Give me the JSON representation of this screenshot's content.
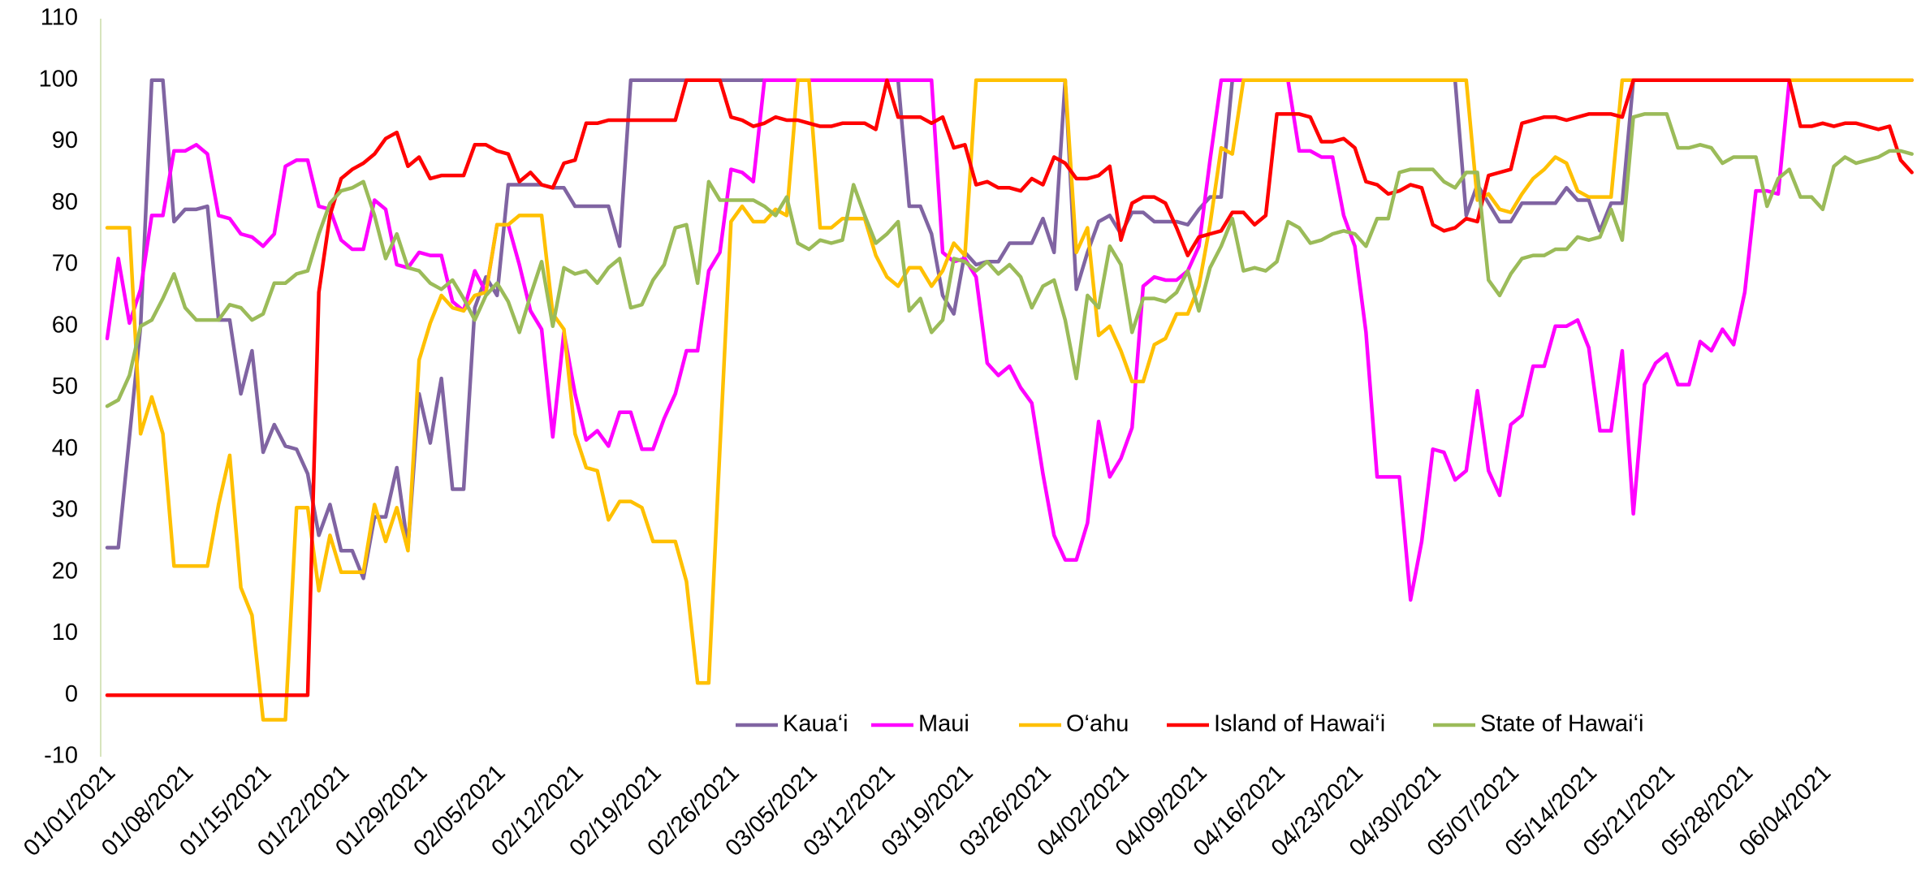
{
  "chart_data": {
    "type": "line",
    "categories": [
      "01/01/2021",
      null,
      null,
      null,
      null,
      null,
      null,
      "01/08/2021",
      null,
      null,
      null,
      null,
      null,
      null,
      "01/15/2021",
      null,
      null,
      null,
      null,
      null,
      null,
      "01/22/2021",
      null,
      null,
      null,
      null,
      null,
      null,
      "01/29/2021",
      null,
      null,
      null,
      null,
      null,
      null,
      "02/05/2021",
      null,
      null,
      null,
      null,
      null,
      null,
      "02/12/2021",
      null,
      null,
      null,
      null,
      null,
      null,
      "02/19/2021",
      null,
      null,
      null,
      null,
      null,
      null,
      "02/26/2021",
      null,
      null,
      null,
      null,
      null,
      null,
      "03/05/2021",
      null,
      null,
      null,
      null,
      null,
      null,
      "03/12/2021",
      null,
      null,
      null,
      null,
      null,
      null,
      "03/19/2021",
      null,
      null,
      null,
      null,
      null,
      null,
      "03/26/2021",
      null,
      null,
      null,
      null,
      null,
      null,
      "04/02/2021",
      null,
      null,
      null,
      null,
      null,
      null,
      "04/09/2021",
      null,
      null,
      null,
      null,
      null,
      null,
      "04/16/2021",
      null,
      null,
      null,
      null,
      null,
      null,
      "04/23/2021",
      null,
      null,
      null,
      null,
      null,
      null,
      "04/30/2021",
      null,
      null,
      null,
      null,
      null,
      null,
      "05/07/2021",
      null,
      null,
      null,
      null,
      null,
      null,
      "05/14/2021",
      null,
      null,
      null,
      null,
      null,
      null,
      "05/21/2021",
      null,
      null,
      null,
      null,
      null,
      null,
      "05/28/2021",
      null,
      null,
      null,
      null,
      null,
      null,
      "06/04/2021",
      null,
      null,
      null,
      null,
      null,
      null,
      null,
      null
    ],
    "series": [
      {
        "name": "Kaua‘i",
        "color": "#8064a2",
        "values": [
          24,
          24,
          42,
          60,
          100,
          100,
          77,
          79,
          79,
          79.5,
          61,
          61,
          49,
          56,
          39.5,
          44,
          40.5,
          40,
          36,
          26,
          31,
          23.5,
          23.5,
          19,
          29,
          29,
          37,
          24,
          49,
          41,
          51.5,
          33.5,
          33.5,
          63,
          68,
          65,
          83,
          83,
          83,
          83,
          82.5,
          82.5,
          79.5,
          79.5,
          79.5,
          79.5,
          73,
          100,
          100,
          100,
          100,
          100,
          100,
          100,
          100,
          100,
          100,
          100,
          100,
          100,
          100,
          100,
          100,
          100,
          100,
          100,
          100,
          100,
          100,
          100,
          100,
          100,
          79.5,
          79.5,
          75,
          65,
          62,
          72,
          70,
          70.5,
          70.5,
          73.5,
          73.5,
          73.5,
          77.5,
          72,
          100,
          66,
          72,
          77,
          78,
          75,
          78.5,
          78.5,
          77,
          77,
          77,
          76.5,
          79,
          81,
          81,
          100,
          100,
          100,
          100,
          100,
          100,
          100,
          100,
          100,
          100,
          100,
          100,
          100,
          100,
          100,
          100,
          100,
          100,
          100,
          100,
          100,
          78,
          83,
          80,
          77,
          77,
          80,
          80,
          80,
          80,
          82.5,
          80.5,
          80.5,
          75.5,
          80,
          80,
          100,
          100,
          100,
          100,
          100,
          100,
          100,
          100,
          100,
          100,
          100,
          100,
          100,
          100,
          100,
          100,
          100,
          100,
          100,
          100,
          100,
          100,
          100,
          100,
          100,
          100
        ]
      },
      {
        "name": "Maui",
        "color": "#ff00ff",
        "values": [
          58,
          71,
          60.5,
          66,
          78,
          78,
          88.5,
          88.5,
          89.5,
          88,
          78,
          77.5,
          75,
          74.5,
          73,
          75,
          86,
          87,
          87,
          79.5,
          79,
          74,
          72.5,
          72.5,
          80.5,
          79,
          70,
          69.5,
          72,
          71.5,
          71.5,
          64,
          62.5,
          69,
          65.5,
          76.5,
          76.5,
          70,
          62.5,
          59.5,
          42,
          59,
          49,
          41.5,
          43,
          40.5,
          46,
          46,
          40,
          40,
          45,
          49,
          56,
          56,
          69,
          72,
          85.5,
          85,
          83.5,
          100,
          100,
          100,
          100,
          100,
          100,
          100,
          100,
          100,
          100,
          100,
          100,
          100,
          100,
          100,
          100,
          72,
          70.5,
          71,
          68,
          54,
          52,
          53.5,
          50,
          47.5,
          36,
          26,
          22,
          22,
          28,
          44.5,
          35.5,
          38.5,
          43.5,
          66.5,
          68,
          67.5,
          67.5,
          69,
          73,
          87,
          100,
          100,
          100,
          100,
          100,
          100,
          100,
          88.5,
          88.5,
          87.5,
          87.5,
          78,
          73,
          59,
          35.5,
          35.5,
          35.5,
          15.5,
          25,
          40,
          39.5,
          35,
          36.5,
          49.5,
          36.5,
          32.5,
          44,
          45.5,
          53.5,
          53.5,
          60,
          60,
          61,
          56.5,
          43,
          43,
          56,
          29.5,
          50.5,
          54,
          55.5,
          50.5,
          50.5,
          57.5,
          56,
          59.5,
          57,
          65.5,
          82,
          82,
          81.5,
          100,
          100,
          100,
          100,
          100,
          100,
          100,
          100,
          100,
          100,
          100,
          100
        ]
      },
      {
        "name": "O‘ahu",
        "color": "#ffc000",
        "values": [
          76,
          76,
          76,
          42.5,
          48.5,
          42.5,
          21,
          21,
          21,
          21,
          31,
          39,
          17.5,
          13,
          -4,
          -4,
          -4,
          30.5,
          30.5,
          17,
          26,
          20,
          20,
          20,
          31,
          25,
          30.5,
          23.5,
          54.5,
          60.5,
          65,
          63,
          62.5,
          65,
          65.5,
          76.5,
          76.5,
          78,
          78,
          78,
          62,
          59.5,
          42.5,
          37,
          36.5,
          28.5,
          31.5,
          31.5,
          30.5,
          25,
          25,
          25,
          18.5,
          2,
          2,
          40,
          77,
          79.5,
          77,
          77,
          79,
          78,
          100,
          100,
          76,
          76,
          77.5,
          77.5,
          77.5,
          71.5,
          68,
          66.5,
          69.5,
          69.5,
          66.5,
          69,
          73.5,
          71.5,
          100,
          100,
          100,
          100,
          100,
          100,
          100,
          100,
          100,
          72,
          76,
          58.5,
          60,
          56,
          51,
          51,
          57,
          58,
          62,
          62,
          66.5,
          76.5,
          89,
          88,
          100,
          100,
          100,
          100,
          100,
          100,
          100,
          100,
          100,
          100,
          100,
          100,
          100,
          100,
          100,
          100,
          100,
          100,
          100,
          100,
          100,
          80.5,
          81.5,
          79,
          78.5,
          81.5,
          84,
          85.5,
          87.5,
          86.5,
          82,
          81,
          81,
          81,
          100,
          100,
          100,
          100,
          100,
          100,
          100,
          100,
          100,
          100,
          100,
          100,
          100,
          100,
          100,
          100,
          100,
          100,
          100,
          100,
          100,
          100,
          100,
          100,
          100,
          100,
          100
        ]
      },
      {
        "name": "Island of Hawai‘i",
        "color": "#ff0000",
        "values": [
          0,
          0,
          0,
          0,
          0,
          0,
          0,
          0,
          0,
          0,
          0,
          0,
          0,
          0,
          0,
          0,
          0,
          0,
          0,
          65.5,
          78,
          84,
          85.5,
          86.5,
          88,
          90.5,
          91.5,
          86,
          87.5,
          84,
          84.5,
          84.5,
          84.5,
          89.5,
          89.5,
          88.5,
          88,
          83.5,
          85,
          83,
          82.5,
          86.5,
          87,
          93,
          93,
          93.5,
          93.5,
          93.5,
          93.5,
          93.5,
          93.5,
          93.5,
          100,
          100,
          100,
          100,
          94,
          93.5,
          92.5,
          93,
          94,
          93.5,
          93.5,
          93,
          92.5,
          92.5,
          93,
          93,
          93,
          92,
          100,
          94,
          94,
          94,
          93,
          94,
          89,
          89.5,
          83,
          83.5,
          82.5,
          82.5,
          82,
          84,
          83,
          87.5,
          86.5,
          84,
          84,
          84.5,
          86,
          74,
          80,
          81,
          81,
          80,
          76,
          71.5,
          74.5,
          75,
          75.5,
          78.5,
          78.5,
          76.5,
          78,
          94.5,
          94.5,
          94.5,
          94,
          90,
          90,
          90.5,
          89,
          83.5,
          83,
          81.5,
          82,
          83,
          82.5,
          76.5,
          75.5,
          76,
          77.5,
          77,
          84.5,
          85,
          85.5,
          93,
          93.5,
          94,
          94,
          93.5,
          94,
          94.5,
          94.5,
          94.5,
          94,
          100,
          100,
          100,
          100,
          100,
          100,
          100,
          100,
          100,
          100,
          100,
          100,
          100,
          100,
          100,
          92.5,
          92.5,
          93,
          92.5,
          93,
          93,
          92.5,
          92,
          92.5,
          87,
          85
        ]
      },
      {
        "name": "State of Hawai‘i",
        "color": "#9bbb59",
        "values": [
          47,
          48,
          52,
          60,
          61,
          64.5,
          68.5,
          63,
          61,
          61,
          61,
          63.5,
          63,
          61,
          62,
          67,
          67,
          68.5,
          69,
          75,
          80,
          82,
          82.5,
          83.5,
          78,
          71,
          75,
          69.5,
          69,
          67,
          66,
          67.5,
          64.5,
          61,
          65,
          67,
          64,
          59,
          65,
          70.5,
          60,
          69.5,
          68.5,
          69,
          67,
          69.5,
          71,
          63,
          63.5,
          67.5,
          70,
          76,
          76.5,
          67,
          83.5,
          80.5,
          80.5,
          80.5,
          80.5,
          79.5,
          78,
          81,
          73.5,
          72.5,
          74,
          73.5,
          74,
          83,
          78,
          73.5,
          75,
          77,
          62.5,
          64.5,
          59,
          61,
          71,
          70.5,
          69,
          70.5,
          68.5,
          70,
          68,
          63,
          66.5,
          67.5,
          61,
          51.5,
          65,
          63,
          73,
          70,
          59,
          64.5,
          64.5,
          64,
          65.5,
          69,
          62.5,
          69.5,
          73,
          77.5,
          69,
          69.5,
          69,
          70.5,
          77,
          76,
          73.5,
          74,
          75,
          75.5,
          75,
          73,
          77.5,
          77.5,
          85,
          85.5,
          85.5,
          85.5,
          83.5,
          82.5,
          85,
          85,
          67.5,
          65,
          68.5,
          71,
          71.5,
          71.5,
          72.5,
          72.5,
          74.5,
          74,
          74.5,
          79,
          74,
          94,
          94.5,
          94.5,
          94.5,
          89,
          89,
          89.5,
          89,
          86.5,
          87.5,
          87.5,
          87.5,
          79.5,
          84,
          85.5,
          81,
          81,
          79,
          86,
          87.5,
          86.5,
          87,
          87.5,
          88.5,
          88.5,
          88
        ]
      }
    ],
    "ylim": [
      -10,
      110
    ],
    "yticks": [
      -10,
      0,
      10,
      20,
      30,
      40,
      50,
      60,
      70,
      80,
      90,
      100,
      110
    ],
    "grid": false,
    "legend": "bottom"
  }
}
